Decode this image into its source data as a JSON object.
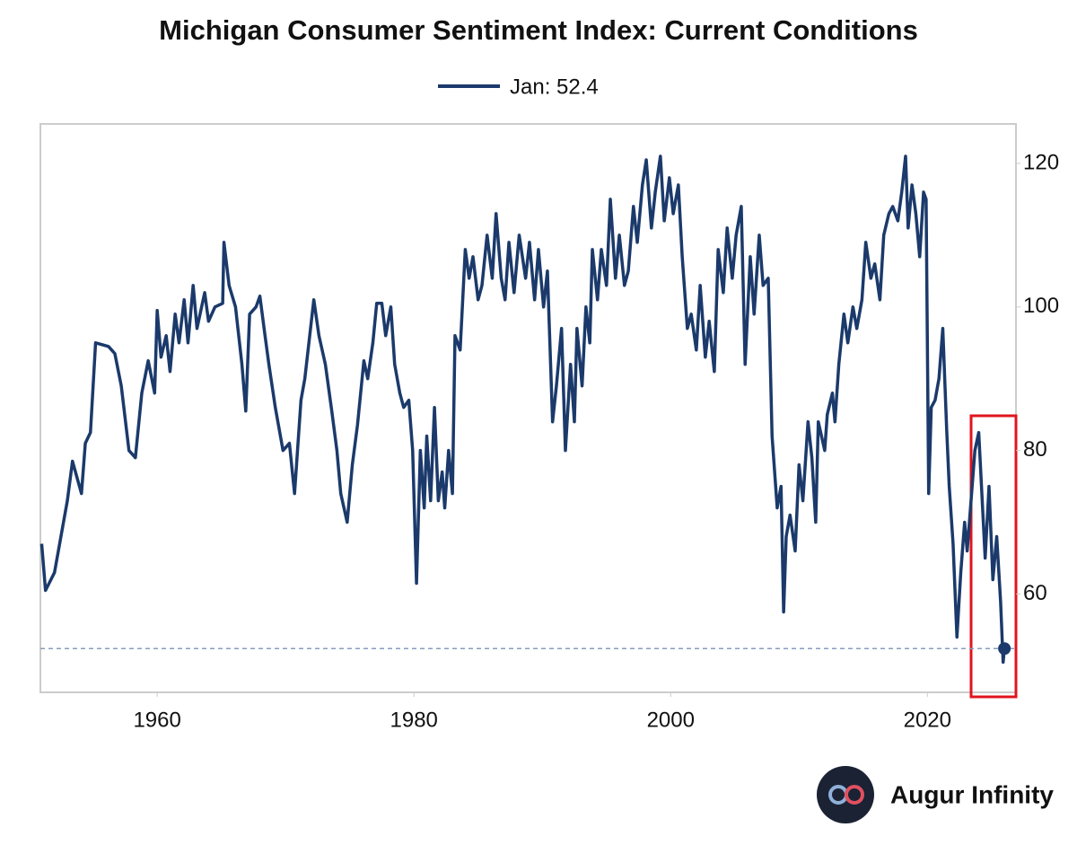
{
  "chart_data": {
    "type": "line",
    "title": "Michigan Consumer Sentiment Index: Current Conditions",
    "xlim": [
      1950.9,
      2026.9
    ],
    "ylim": [
      46.3,
      125.5
    ],
    "xticks": [
      1960,
      1980,
      2000,
      2020
    ],
    "yticks": [
      60,
      80,
      100,
      120
    ],
    "series": [
      {
        "name": "Jan: 52.4",
        "color": "#1b3a6b",
        "x": [
          1951.0,
          1951.3,
          1952.0,
          1952.7,
          1953.0,
          1953.4,
          1954.1,
          1954.4,
          1954.8,
          1955.2,
          1956.2,
          1956.7,
          1957.2,
          1957.8,
          1958.3,
          1958.8,
          1959.3,
          1959.8,
          1960.0,
          1960.3,
          1960.7,
          1961.0,
          1961.4,
          1961.7,
          1962.1,
          1962.4,
          1962.8,
          1963.1,
          1963.7,
          1964.0,
          1964.5,
          1965.1,
          1965.2,
          1965.6,
          1966.1,
          1966.6,
          1966.9,
          1967.2,
          1967.7,
          1968.0,
          1968.4,
          1968.7,
          1969.2,
          1969.8,
          1970.3,
          1970.7,
          1971.2,
          1971.5,
          1972.2,
          1972.6,
          1973.1,
          1973.6,
          1974.0,
          1974.3,
          1974.8,
          1975.2,
          1975.6,
          1976.1,
          1976.4,
          1976.8,
          1977.1,
          1977.5,
          1977.8,
          1978.2,
          1978.5,
          1978.9,
          1979.2,
          1979.6,
          1979.9,
          1980.2,
          1980.5,
          1980.8,
          1981.0,
          1981.3,
          1981.6,
          1981.9,
          1982.2,
          1982.4,
          1982.7,
          1983.0,
          1983.2,
          1983.6,
          1984.0,
          1984.3,
          1984.6,
          1985.0,
          1985.3,
          1985.7,
          1986.1,
          1986.4,
          1986.8,
          1987.1,
          1987.4,
          1987.8,
          1988.2,
          1988.7,
          1989.0,
          1989.4,
          1989.7,
          1990.1,
          1990.4,
          1990.8,
          1991.1,
          1991.5,
          1991.8,
          1992.2,
          1992.5,
          1992.7,
          1993.1,
          1993.4,
          1993.7,
          1993.9,
          1994.3,
          1994.6,
          1995.0,
          1995.3,
          1995.7,
          1996.0,
          1996.4,
          1996.7,
          1997.1,
          1997.4,
          1997.8,
          1998.1,
          1998.5,
          1998.8,
          1999.2,
          1999.5,
          1999.9,
          2000.2,
          2000.6,
          2000.9,
          2001.3,
          2001.6,
          2002.0,
          2002.3,
          2002.7,
          2003.0,
          2003.4,
          2003.7,
          2004.1,
          2004.4,
          2004.8,
          2005.1,
          2005.5,
          2005.8,
          2006.2,
          2006.5,
          2006.9,
          2007.2,
          2007.6,
          2007.9,
          2008.3,
          2008.6,
          2008.8,
          2009.0,
          2009.3,
          2009.7,
          2010.0,
          2010.3,
          2010.7,
          2011.0,
          2011.3,
          2011.5,
          2012.0,
          2012.2,
          2012.6,
          2012.8,
          2013.1,
          2013.5,
          2013.8,
          2014.2,
          2014.5,
          2014.9,
          2015.2,
          2015.6,
          2015.9,
          2016.3,
          2016.6,
          2017.0,
          2017.3,
          2017.7,
          2018.0,
          2018.3,
          2018.5,
          2018.8,
          2019.1,
          2019.4,
          2019.7,
          2019.9,
          2020.1,
          2020.3,
          2020.6,
          2020.9,
          2021.2,
          2021.5,
          2021.7,
          2022.0,
          2022.3,
          2022.6,
          2022.9,
          2023.1,
          2023.4,
          2023.7,
          2024.0,
          2024.3,
          2024.5,
          2024.8,
          2025.1,
          2025.4,
          2025.7,
          2025.9,
          2026.0
        ],
        "values": [
          67,
          60.5,
          63,
          70,
          73,
          78.5,
          74,
          81,
          82.5,
          95,
          94.5,
          93.5,
          89,
          80,
          79,
          88,
          92.5,
          88,
          99.5,
          93,
          96,
          91,
          99,
          95,
          101,
          95,
          103,
          97,
          102,
          98,
          100,
          100.5,
          109,
          103,
          100,
          92,
          85.5,
          99,
          100,
          101.5,
          96,
          92,
          86,
          80,
          81,
          74,
          87,
          90,
          101,
          96,
          92,
          85.5,
          80,
          74,
          70,
          78,
          83.5,
          92.5,
          90,
          95,
          100.5,
          100.5,
          96,
          100,
          92,
          88,
          86,
          87,
          80,
          61.5,
          80,
          72,
          82,
          73,
          86,
          73,
          77,
          72,
          80,
          74,
          96,
          94,
          108,
          104,
          107,
          101,
          103,
          110,
          104,
          113,
          104,
          101,
          109,
          102,
          110,
          104,
          109,
          101,
          108,
          100,
          105,
          84,
          89,
          97,
          80,
          92,
          84,
          97,
          89,
          100,
          95,
          108,
          101,
          108,
          103,
          115,
          104,
          110,
          103,
          105,
          114,
          109,
          117,
          120.5,
          111,
          116,
          121,
          112,
          118,
          113,
          117,
          107,
          97,
          99,
          94,
          103,
          93,
          98,
          91,
          108,
          102,
          111,
          104,
          110,
          114,
          92,
          107,
          99,
          110,
          103,
          104,
          82,
          72,
          75,
          57.5,
          68,
          71,
          66,
          78,
          73,
          84,
          79,
          70,
          84,
          80,
          85,
          88,
          84,
          92,
          99,
          95,
          100,
          97,
          101,
          109,
          104,
          106,
          101,
          110,
          113,
          114,
          112,
          116,
          121,
          111,
          117,
          113,
          107,
          116,
          115,
          74,
          86,
          87,
          90,
          97,
          83,
          75,
          67,
          54,
          63,
          70,
          66,
          73,
          80,
          82.5,
          72,
          65,
          75,
          62,
          68,
          59,
          50.5,
          52.4
        ]
      }
    ]
  },
  "brand": "Augur Infinity"
}
